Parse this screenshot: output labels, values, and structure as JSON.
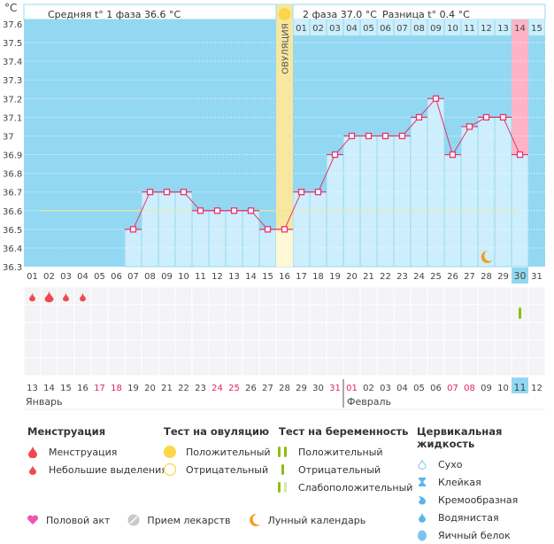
{
  "header": {
    "unit": "°C",
    "phase1_label": "Средняя t° 1 фаза 36.6 °C",
    "phase2_label": "2 фаза 37.0 °C",
    "diff_label": "Разница t° 0.4 °C"
  },
  "colors": {
    "plot_bg": "#93d8f2",
    "bar_fill": "#cdeefc",
    "line": "#e8336b",
    "ovulation": "#f7e7a0",
    "highlight_pink": "#ffb3c6",
    "coverline": "#f5e68a",
    "holiday_text": "#e0245e",
    "today_bg": "#93d8f2",
    "menstruation": "#f0494f",
    "pregnancy_test": "#8fbd14",
    "moon": "#f39c1e"
  },
  "chart_data": {
    "type": "line",
    "title": "",
    "ylabel": "°C",
    "xlabel": "",
    "ylim": [
      36.3,
      37.6
    ],
    "y_ticks": [
      "37.6",
      "37.5",
      "37.4",
      "37.3",
      "37.2",
      "37.1",
      "37",
      "36.9",
      "36.8",
      "36.7",
      "36.6",
      "36.5",
      "36.4",
      "36.3"
    ],
    "x": [
      "01",
      "02",
      "03",
      "04",
      "05",
      "06",
      "07",
      "08",
      "09",
      "10",
      "11",
      "12",
      "13",
      "14",
      "15",
      "16",
      "17",
      "18",
      "19",
      "20",
      "21",
      "22",
      "23",
      "24",
      "25",
      "26",
      "27",
      "28",
      "29",
      "30",
      "31"
    ],
    "series": [
      {
        "name": "Базальная температура",
        "values": [
          null,
          null,
          null,
          null,
          null,
          null,
          36.5,
          36.7,
          36.7,
          36.7,
          36.6,
          36.6,
          36.6,
          36.6,
          36.5,
          36.5,
          36.7,
          36.7,
          36.9,
          37.0,
          37.0,
          37.0,
          37.0,
          37.1,
          37.2,
          36.9,
          37.05,
          37.1,
          37.1,
          36.9,
          null
        ]
      }
    ],
    "coverline": 36.6,
    "coverline_range": [
      7,
      30
    ],
    "ovulation_day": 16,
    "ovulation_label": "ОВУЛЯЦИЯ",
    "phase2_day_labels": [
      "01",
      "02",
      "03",
      "04",
      "05",
      "06",
      "07",
      "08",
      "09",
      "10",
      "11",
      "12",
      "13",
      "14",
      "15"
    ],
    "phase2_start_day": 17,
    "highlighted_phase2_day": "14",
    "current_day": 30,
    "moon_day": 28,
    "menstruation": [
      {
        "day": 1,
        "type": "light"
      },
      {
        "day": 2,
        "type": "heavy"
      },
      {
        "day": 3,
        "type": "light"
      },
      {
        "day": 4,
        "type": "light"
      }
    ],
    "pregnancy_test": [
      {
        "day": 30,
        "result": "negative"
      }
    ],
    "calendar_dates": [
      "13",
      "14",
      "15",
      "16",
      "17",
      "18",
      "19",
      "20",
      "21",
      "22",
      "23",
      "24",
      "25",
      "26",
      "27",
      "28",
      "29",
      "30",
      "31",
      "01",
      "02",
      "03",
      "04",
      "05",
      "06",
      "07",
      "08",
      "09",
      "10",
      "11",
      "12"
    ],
    "weekend_dates_idx": [
      4,
      5,
      11,
      12,
      18,
      19,
      25,
      26
    ],
    "today_date_idx": 29,
    "months": [
      {
        "label": "Январь",
        "start_idx": 0
      },
      {
        "label": "Февраль",
        "start_idx": 19
      }
    ]
  },
  "legend": {
    "menstruation": {
      "title": "Менструация",
      "items": [
        {
          "icon": "drop-large-icon",
          "label": "Менструация"
        },
        {
          "icon": "drop-small-icon",
          "label": "Небольшие выделения"
        }
      ]
    },
    "ovulation_test": {
      "title": "Тест на овуляцию",
      "items": [
        {
          "icon": "circle-filled-icon",
          "label": "Положительный"
        },
        {
          "icon": "circle-outline-icon",
          "label": "Отрицательный"
        }
      ]
    },
    "pregnancy_test": {
      "title": "Тест на беременность",
      "items": [
        {
          "icon": "two-bars-icon",
          "label": "Положительный"
        },
        {
          "icon": "one-bar-icon",
          "label": "Отрицательный"
        },
        {
          "icon": "faint-bars-icon",
          "label": "Слабоположительный"
        }
      ]
    },
    "cervical_fluid": {
      "title": "Цервикальная жидкость",
      "items": [
        {
          "icon": "dry-icon",
          "label": "Сухо"
        },
        {
          "icon": "sticky-icon",
          "label": "Клейкая"
        },
        {
          "icon": "creamy-icon",
          "label": "Кремообразная"
        },
        {
          "icon": "watery-icon",
          "label": "Водянистая"
        },
        {
          "icon": "egg-white-icon",
          "label": "Яичный белок"
        }
      ]
    },
    "bottom": [
      {
        "icon": "heart-icon",
        "label": "Половой акт"
      },
      {
        "icon": "pill-icon",
        "label": "Прием лекарств"
      },
      {
        "icon": "moon-icon",
        "label": "Лунный календарь"
      }
    ]
  }
}
